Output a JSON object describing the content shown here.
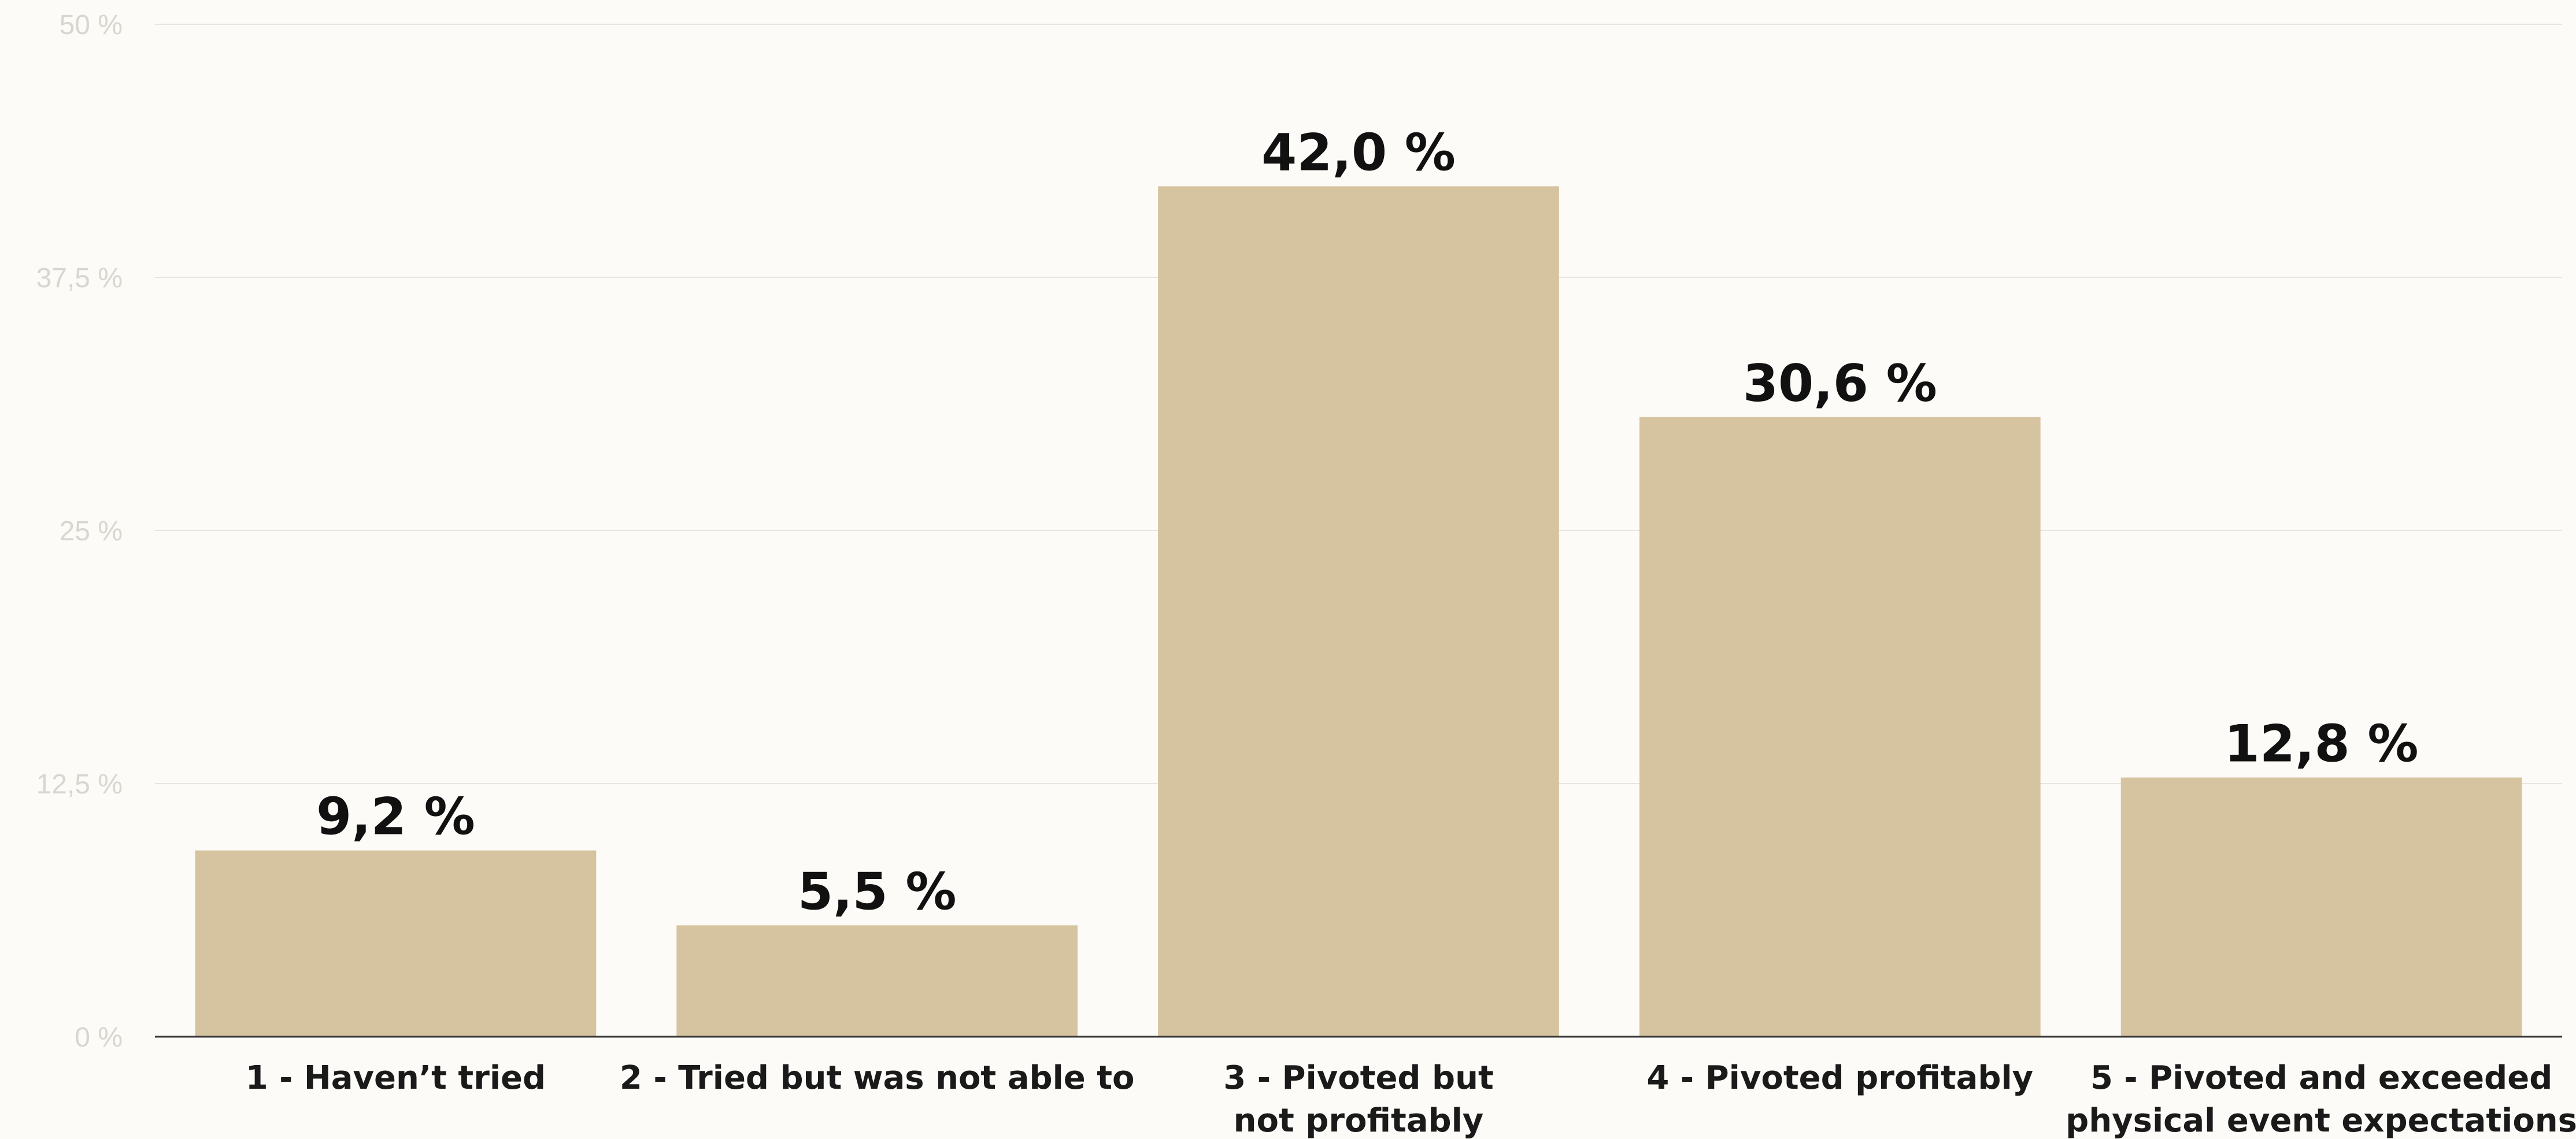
{
  "chart_data": {
    "type": "bar",
    "categories": [
      [
        "1 - Haven’t tried"
      ],
      [
        "2 - Tried but was not able to"
      ],
      [
        "3 - Pivoted but",
        "not profitably"
      ],
      [
        "4 - Pivoted profitably"
      ],
      [
        "5 - Pivoted and exceeded",
        "physical event expectations"
      ]
    ],
    "values": [
      9.2,
      5.5,
      42.0,
      30.6,
      12.8
    ],
    "value_labels": [
      "9,2 %",
      "5,5 %",
      "42,0 %",
      "30,6 %",
      "12,8 %"
    ],
    "ylim": [
      0,
      50
    ],
    "y_ticks": [
      0,
      12.5,
      25,
      37.5,
      50
    ],
    "y_tick_labels": [
      "0 %",
      "12,5 %",
      "25 %",
      "37,5 %",
      "50 %"
    ],
    "grid": true,
    "legend": "none",
    "colors": {
      "bar": "#d6c4a1",
      "background": "#fdfbf7",
      "gridline": "#e8e5df",
      "baseline": "#3a3a3a",
      "tick_text": "#d9d6d0",
      "label_text": "#111111"
    }
  }
}
